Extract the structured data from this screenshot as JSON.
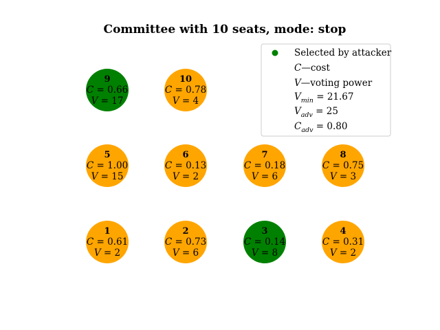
{
  "title": "Committee with 10 seats, mode: stop",
  "colors": {
    "selected": "#008000",
    "unselected": "#FFA500"
  },
  "seats": [
    {
      "id": "1",
      "cost": "0.61",
      "power": "2",
      "selected": false
    },
    {
      "id": "2",
      "cost": "0.73",
      "power": "6",
      "selected": false
    },
    {
      "id": "3",
      "cost": "0.14",
      "power": "8",
      "selected": true
    },
    {
      "id": "4",
      "cost": "0.31",
      "power": "2",
      "selected": false
    },
    {
      "id": "5",
      "cost": "1.00",
      "power": "15",
      "selected": false
    },
    {
      "id": "6",
      "cost": "0.13",
      "power": "2",
      "selected": false
    },
    {
      "id": "7",
      "cost": "0.18",
      "power": "6",
      "selected": false
    },
    {
      "id": "8",
      "cost": "0.75",
      "power": "3",
      "selected": false
    },
    {
      "id": "9",
      "cost": "0.66",
      "power": "17",
      "selected": true
    },
    {
      "id": "10",
      "cost": "0.78",
      "power": "4",
      "selected": false
    }
  ],
  "legend": {
    "selected_label": "Selected by attacker",
    "cost_label": "—cost",
    "power_label": "—voting power",
    "vmin": "21.67",
    "vadv": "25",
    "cadv": "0.80"
  }
}
